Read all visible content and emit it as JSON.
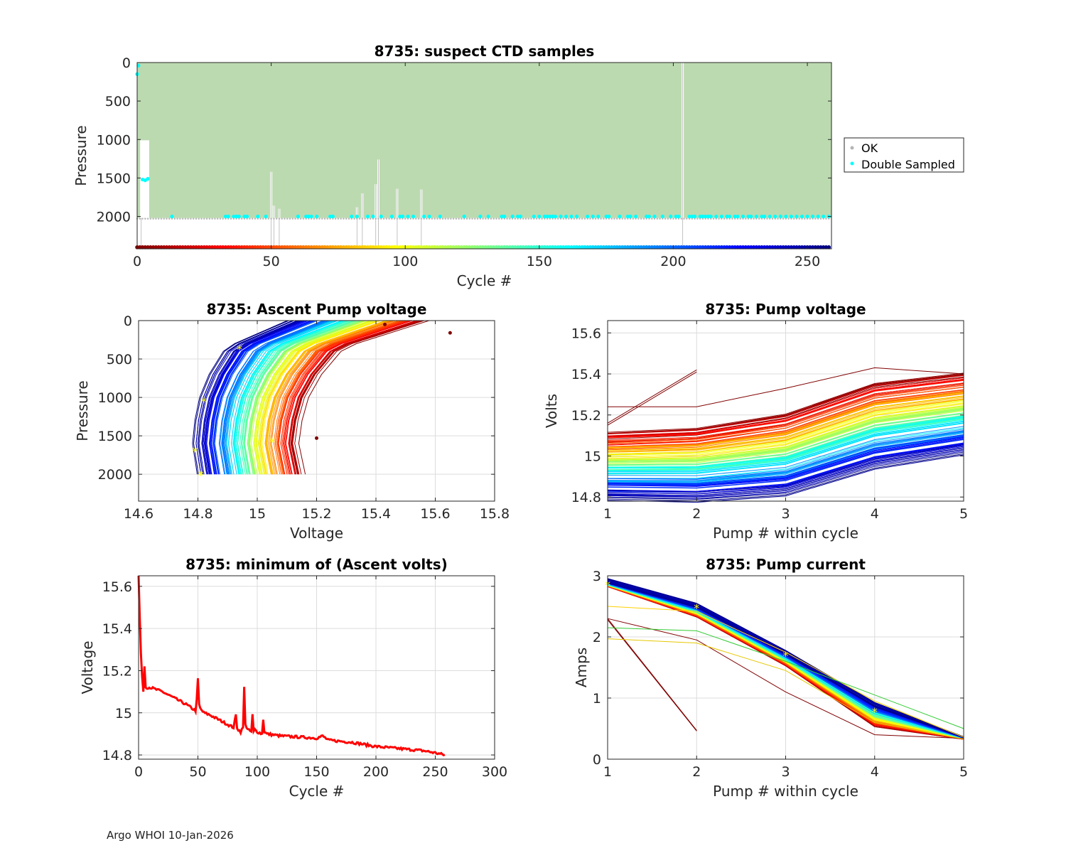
{
  "footer": "Argo WHOI 10-Jan-2026",
  "colors": {
    "ok": "#bcdab0",
    "ok_marker": "#b4b4b4",
    "double": "#00ffff",
    "grid": "#dcdcdc",
    "axis": "#262626",
    "min_line": "#ff0000",
    "marker": "#ffff00"
  },
  "chart_data": [
    {
      "id": "ctd",
      "type": "scatter",
      "title": "8735: suspect CTD samples",
      "xlabel": "Cycle #",
      "ylabel": "Pressure",
      "xlim": [
        0,
        259
      ],
      "ylim": [
        2420,
        0
      ],
      "xticks": [
        0,
        50,
        100,
        150,
        200,
        250
      ],
      "yticks": [
        0,
        500,
        1000,
        1500,
        2000
      ],
      "ok_max_pressure": 2020,
      "shallow_profiles": [
        {
          "cycle": 1.5,
          "max_p": 1010
        },
        {
          "cycle": 50,
          "max_p": 1420
        },
        {
          "cycle": 51,
          "max_p": 1860
        },
        {
          "cycle": 53,
          "max_p": 1900
        },
        {
          "cycle": 82,
          "max_p": 1880
        },
        {
          "cycle": 84,
          "max_p": 1700
        },
        {
          "cycle": 89,
          "max_p": 1580
        },
        {
          "cycle": 90,
          "max_p": 1260
        },
        {
          "cycle": 97,
          "max_p": 1640
        },
        {
          "cycle": 106,
          "max_p": 1650
        },
        {
          "cycle": 203.5,
          "max_p": 0
        }
      ],
      "double_sampled": {
        "near_surface": [
          {
            "cycle": 0,
            "p": 150
          },
          {
            "cycle": 0.5,
            "p": 40
          }
        ],
        "mid": [
          {
            "cycle": 2,
            "p": 1520
          },
          {
            "cycle": 3,
            "p": 1530
          },
          {
            "cycle": 4,
            "p": 1510
          }
        ],
        "bottom_pressure": 2000,
        "bottom_cycles": [
          13,
          33,
          34,
          36,
          37,
          38,
          40,
          41,
          45,
          48,
          60,
          63,
          64,
          65,
          67,
          72,
          73,
          80,
          82,
          86,
          88,
          91,
          95,
          98,
          99,
          101,
          103,
          107,
          109,
          113,
          122,
          128,
          131,
          136,
          137,
          140,
          142,
          143,
          148,
          150,
          152,
          153,
          154,
          155,
          156,
          158,
          160,
          162,
          164,
          168,
          170,
          172,
          175,
          176,
          180,
          183,
          184,
          186,
          190,
          191,
          193,
          196,
          199,
          201,
          202,
          206,
          207,
          208,
          210,
          211,
          212,
          213,
          214,
          216,
          218,
          220,
          221,
          223,
          224,
          226,
          228,
          229,
          231,
          233,
          234,
          236,
          238,
          240,
          242,
          244,
          246,
          248,
          250,
          252,
          254,
          256,
          258
        ]
      },
      "cycle_colorbar_pressure": 2400,
      "legend": {
        "entries": [
          "OK",
          "Double Sampled"
        ],
        "location": "outside-right"
      }
    },
    {
      "id": "ascent",
      "type": "line",
      "title": "8735: Ascent Pump voltage",
      "xlabel": "Voltage",
      "ylabel": "Pressure",
      "xlim": [
        14.6,
        15.8
      ],
      "ylim": [
        2350,
        0
      ],
      "xticks": [
        14.6,
        14.8,
        15,
        15.2,
        15.4,
        15.6,
        15.8
      ],
      "yticks": [
        0,
        500,
        1000,
        1500,
        2000
      ],
      "profile_shape": {
        "pressures": [
          0,
          350,
          700,
          1000,
          1300,
          1600,
          2000
        ],
        "voltage_offsets": [
          0.4,
          0.14,
          0.07,
          0.03,
          0.01,
          0.0,
          0.02
        ]
      },
      "base_voltage_range": [
        14.79,
        15.13
      ],
      "outliers": [
        {
          "v": 15.65,
          "p": 160
        },
        {
          "v": 15.43,
          "p": 50
        },
        {
          "v": 15.2,
          "p": 1530
        }
      ],
      "yellow_markers": [
        {
          "v": 14.94,
          "p": 350
        },
        {
          "v": 14.82,
          "p": 1030
        },
        {
          "v": 14.79,
          "p": 1680
        },
        {
          "v": 14.81,
          "p": 1990
        },
        {
          "v": 15.05,
          "p": 1560
        }
      ]
    },
    {
      "id": "pumpv",
      "type": "line",
      "title": "8735: Pump voltage",
      "xlabel": "Pump # within cycle",
      "ylabel": "Volts",
      "xlim": [
        1,
        5
      ],
      "ylim": [
        14.78,
        15.66
      ],
      "xticks": [
        1,
        2,
        3,
        4,
        5
      ],
      "yticks": [
        14.8,
        15,
        15.2,
        15.4,
        15.6
      ],
      "ytick_labels": [
        "14.8",
        "15",
        "15.2",
        "15.4",
        "15.6"
      ],
      "pumps": [
        1,
        2,
        3,
        4,
        5
      ],
      "early_cycle_volts": [
        15.11,
        15.13,
        15.2,
        15.35,
        15.4
      ],
      "late_cycle_volts": [
        14.8,
        14.79,
        14.82,
        14.95,
        15.02
      ],
      "special_lines": [
        {
          "x": [
            1,
            2
          ],
          "y": [
            15.16,
            15.42
          ]
        },
        {
          "x": [
            1,
            2
          ],
          "y": [
            15.15,
            15.41
          ]
        },
        {
          "x": [
            1,
            2,
            3,
            4,
            5
          ],
          "y": [
            15.24,
            15.24,
            15.33,
            15.43,
            15.4
          ]
        }
      ]
    },
    {
      "id": "minv",
      "type": "line",
      "title": "8735: minimum of (Ascent volts)",
      "xlabel": "Cycle #",
      "ylabel": "Voltage",
      "xlim": [
        0,
        300
      ],
      "ylim": [
        14.78,
        15.65
      ],
      "xticks": [
        0,
        50,
        100,
        150,
        200,
        250,
        300
      ],
      "yticks": [
        14.8,
        15,
        15.2,
        15.4,
        15.6
      ],
      "ytick_labels": [
        "14.8",
        "15",
        "15.2",
        "15.4",
        "15.6"
      ],
      "trend_cycles": [
        0,
        1,
        2,
        3,
        4,
        5,
        6,
        10,
        20,
        30,
        40,
        48,
        49,
        50,
        51,
        52,
        55,
        60,
        70,
        80,
        82,
        83,
        84,
        86,
        88,
        89,
        90,
        91,
        92,
        95,
        96,
        97,
        98,
        100,
        104,
        105,
        106,
        108,
        120,
        150,
        155,
        160,
        180,
        200,
        220,
        240,
        250,
        258
      ],
      "trend_volts": [
        15.65,
        15.45,
        15.28,
        15.17,
        15.1,
        15.22,
        15.12,
        15.12,
        15.1,
        15.07,
        15.04,
        15.01,
        15.06,
        15.16,
        15.04,
        15.02,
        15.0,
        14.99,
        14.96,
        14.93,
        14.99,
        14.93,
        14.92,
        14.91,
        14.93,
        15.12,
        14.95,
        14.93,
        14.92,
        14.91,
        14.99,
        14.91,
        14.92,
        14.91,
        14.9,
        14.97,
        14.91,
        14.9,
        14.89,
        14.88,
        14.89,
        14.87,
        14.86,
        14.84,
        14.83,
        14.82,
        14.81,
        14.8
      ]
    },
    {
      "id": "current",
      "type": "line",
      "title": "8735: Pump current",
      "xlabel": "Pump # within cycle",
      "ylabel": "Amps",
      "xlim": [
        1,
        5
      ],
      "ylim": [
        0,
        3
      ],
      "xticks": [
        1,
        2,
        3,
        4,
        5
      ],
      "yticks": [
        0,
        1,
        2,
        3
      ],
      "pumps": [
        1,
        2,
        3,
        4,
        5
      ],
      "late_cycle_amps": [
        2.92,
        2.52,
        1.75,
        0.9,
        0.36
      ],
      "early_cycle_amps": [
        2.85,
        2.35,
        1.55,
        0.55,
        0.33
      ],
      "special_lines": [
        {
          "x": [
            1,
            2
          ],
          "y": [
            2.3,
            0.47
          ]
        },
        {
          "x": [
            1,
            2
          ],
          "y": [
            2.28,
            0.46
          ]
        },
        {
          "x": [
            1,
            2,
            3,
            4,
            5
          ],
          "y": [
            2.3,
            1.95,
            1.1,
            0.4,
            0.34
          ]
        },
        {
          "x": [
            1,
            2,
            3,
            4,
            5
          ],
          "y": [
            1.97,
            1.9,
            1.45,
            0.6,
            0.33
          ]
        },
        {
          "x": [
            1,
            2,
            3,
            4,
            5
          ],
          "y": [
            2.5,
            2.42,
            1.75,
            0.95,
            0.36
          ]
        },
        {
          "x": [
            1,
            2,
            3,
            4,
            5
          ],
          "y": [
            2.15,
            2.1,
            1.6,
            1.05,
            0.5
          ]
        }
      ],
      "yellow_markers": [
        {
          "p": 1,
          "a": 2.88
        },
        {
          "p": 2,
          "a": 2.5
        },
        {
          "p": 3,
          "a": 1.72
        },
        {
          "p": 4,
          "a": 0.8
        }
      ]
    }
  ]
}
